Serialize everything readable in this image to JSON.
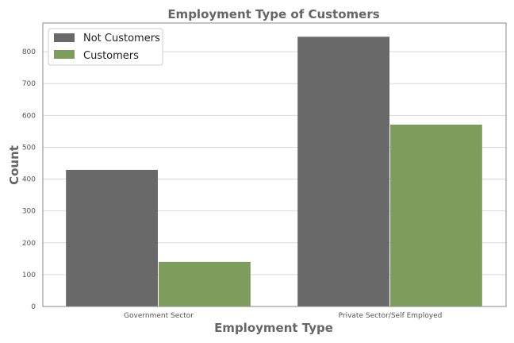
{
  "chart_data": {
    "type": "bar",
    "title": "Employment Type of Customers",
    "xlabel": "Employment Type",
    "ylabel": "Count",
    "categories": [
      "Government Sector",
      "Private Sector/Self Employed"
    ],
    "series": [
      {
        "name": "Not Customers",
        "values": [
          429,
          847
        ],
        "color": "#696969"
      },
      {
        "name": "Customers",
        "values": [
          140,
          571
        ],
        "color": "#7d9d5c"
      }
    ],
    "ylim": [
      0,
      890
    ],
    "yticks": [
      0,
      100,
      200,
      300,
      400,
      500,
      600,
      700,
      800
    ],
    "grid": true,
    "legend_position": "top-left"
  }
}
